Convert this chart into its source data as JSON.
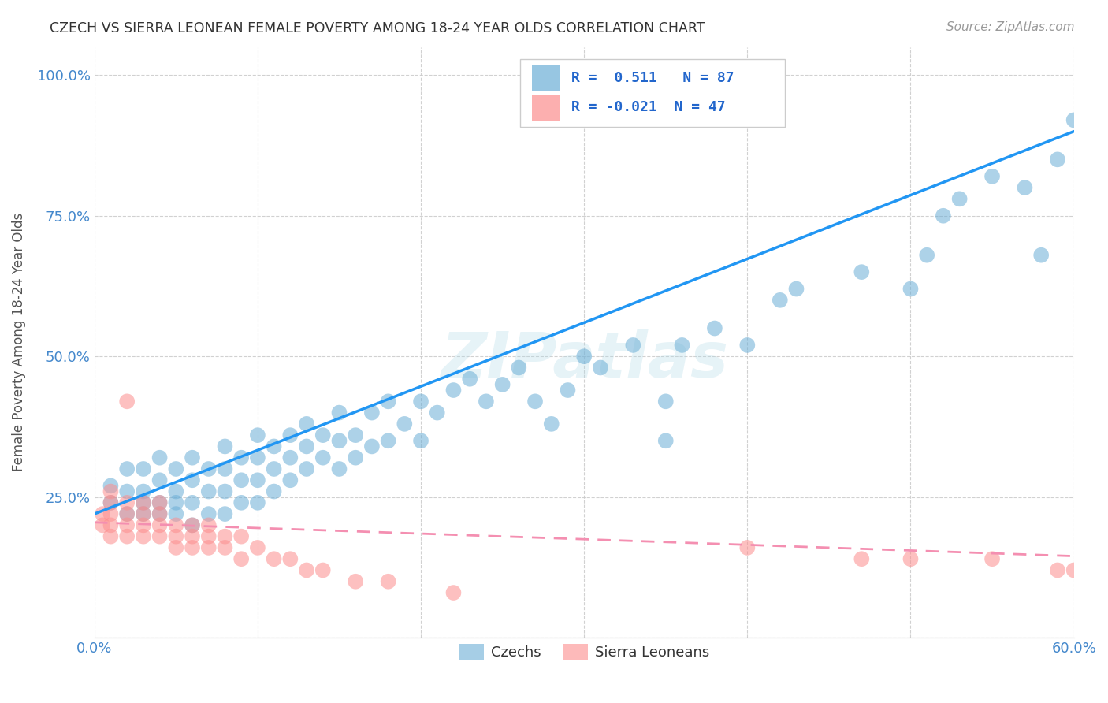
{
  "title": "CZECH VS SIERRA LEONEAN FEMALE POVERTY AMONG 18-24 YEAR OLDS CORRELATION CHART",
  "source": "Source: ZipAtlas.com",
  "ylabel": "Female Poverty Among 18-24 Year Olds",
  "xlim": [
    0.0,
    0.6
  ],
  "ylim": [
    0.0,
    1.05
  ],
  "x_ticks": [
    0.0,
    0.1,
    0.2,
    0.3,
    0.4,
    0.5,
    0.6
  ],
  "x_tick_labels": [
    "0.0%",
    "",
    "",
    "",
    "",
    "",
    "60.0%"
  ],
  "y_ticks": [
    0.0,
    0.25,
    0.5,
    0.75,
    1.0
  ],
  "y_tick_labels": [
    "",
    "25.0%",
    "50.0%",
    "75.0%",
    "100.0%"
  ],
  "czech_color": "#6baed6",
  "sierra_color": "#fc8d8d",
  "czech_line_color": "#2196F3",
  "sierra_line_color": "#f48fb1",
  "czech_R": 0.511,
  "czech_N": 87,
  "sierra_R": -0.021,
  "sierra_N": 47,
  "legend_labels": [
    "Czechs",
    "Sierra Leoneans"
  ],
  "background_color": "#ffffff",
  "grid_color": "#cccccc",
  "watermark_text": "ZIPatlas",
  "axis_label_color": "#4488cc",
  "czech_scatter_x": [
    0.01,
    0.01,
    0.02,
    0.02,
    0.02,
    0.03,
    0.03,
    0.03,
    0.03,
    0.04,
    0.04,
    0.04,
    0.04,
    0.05,
    0.05,
    0.05,
    0.05,
    0.06,
    0.06,
    0.06,
    0.06,
    0.07,
    0.07,
    0.07,
    0.08,
    0.08,
    0.08,
    0.08,
    0.09,
    0.09,
    0.09,
    0.1,
    0.1,
    0.1,
    0.1,
    0.11,
    0.11,
    0.11,
    0.12,
    0.12,
    0.12,
    0.13,
    0.13,
    0.13,
    0.14,
    0.14,
    0.15,
    0.15,
    0.15,
    0.16,
    0.16,
    0.17,
    0.17,
    0.18,
    0.18,
    0.19,
    0.2,
    0.2,
    0.21,
    0.22,
    0.23,
    0.24,
    0.25,
    0.26,
    0.27,
    0.28,
    0.29,
    0.3,
    0.31,
    0.33,
    0.35,
    0.35,
    0.36,
    0.38,
    0.4,
    0.42,
    0.43,
    0.47,
    0.5,
    0.51,
    0.52,
    0.53,
    0.55,
    0.57,
    0.58,
    0.59,
    0.6
  ],
  "czech_scatter_y": [
    0.27,
    0.24,
    0.26,
    0.22,
    0.3,
    0.22,
    0.26,
    0.3,
    0.24,
    0.22,
    0.28,
    0.24,
    0.32,
    0.22,
    0.26,
    0.3,
    0.24,
    0.2,
    0.24,
    0.28,
    0.32,
    0.22,
    0.26,
    0.3,
    0.22,
    0.26,
    0.3,
    0.34,
    0.24,
    0.28,
    0.32,
    0.24,
    0.28,
    0.32,
    0.36,
    0.26,
    0.3,
    0.34,
    0.28,
    0.32,
    0.36,
    0.3,
    0.34,
    0.38,
    0.32,
    0.36,
    0.3,
    0.35,
    0.4,
    0.32,
    0.36,
    0.34,
    0.4,
    0.35,
    0.42,
    0.38,
    0.35,
    0.42,
    0.4,
    0.44,
    0.46,
    0.42,
    0.45,
    0.48,
    0.42,
    0.38,
    0.44,
    0.5,
    0.48,
    0.52,
    0.35,
    0.42,
    0.52,
    0.55,
    0.52,
    0.6,
    0.62,
    0.65,
    0.62,
    0.68,
    0.75,
    0.78,
    0.82,
    0.8,
    0.68,
    0.85,
    0.92
  ],
  "sierra_scatter_x": [
    0.005,
    0.005,
    0.01,
    0.01,
    0.01,
    0.01,
    0.01,
    0.02,
    0.02,
    0.02,
    0.02,
    0.02,
    0.03,
    0.03,
    0.03,
    0.03,
    0.04,
    0.04,
    0.04,
    0.04,
    0.05,
    0.05,
    0.05,
    0.06,
    0.06,
    0.06,
    0.07,
    0.07,
    0.07,
    0.08,
    0.08,
    0.09,
    0.09,
    0.1,
    0.11,
    0.12,
    0.13,
    0.14,
    0.16,
    0.18,
    0.22,
    0.4,
    0.47,
    0.5,
    0.55,
    0.59,
    0.6
  ],
  "sierra_scatter_y": [
    0.2,
    0.22,
    0.18,
    0.2,
    0.22,
    0.24,
    0.26,
    0.18,
    0.2,
    0.22,
    0.24,
    0.42,
    0.18,
    0.2,
    0.22,
    0.24,
    0.18,
    0.2,
    0.22,
    0.24,
    0.16,
    0.18,
    0.2,
    0.16,
    0.18,
    0.2,
    0.16,
    0.18,
    0.2,
    0.16,
    0.18,
    0.14,
    0.18,
    0.16,
    0.14,
    0.14,
    0.12,
    0.12,
    0.1,
    0.1,
    0.08,
    0.16,
    0.14,
    0.14,
    0.14,
    0.12,
    0.12
  ],
  "czech_line_x0": 0.0,
  "czech_line_y0": 0.22,
  "czech_line_x1": 0.6,
  "czech_line_y1": 0.9,
  "sierra_line_x0": 0.0,
  "sierra_line_y0": 0.205,
  "sierra_line_x1": 0.6,
  "sierra_line_y1": 0.145
}
